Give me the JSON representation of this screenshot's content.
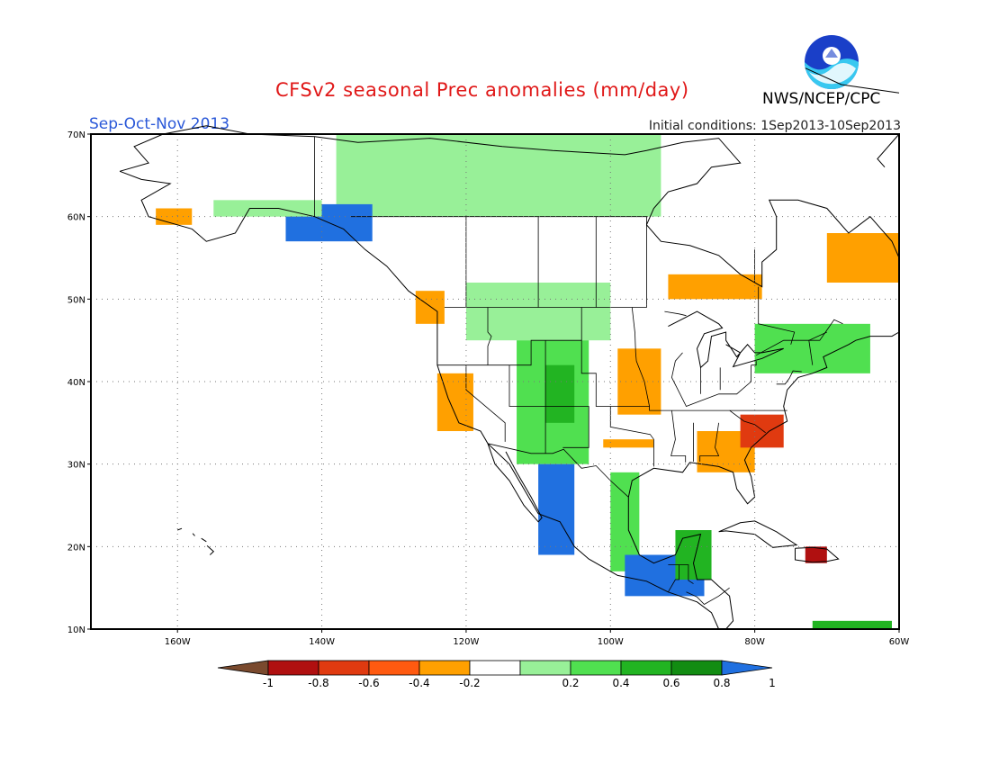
{
  "header": {
    "title": "CFSv2 seasonal Prec anomalies (mm/day)",
    "period": "Sep-Oct-Nov 2013",
    "init_conditions": "Initial conditions: 1Sep2013-10Sep2013",
    "org": "NWS/NCEP/CPC",
    "logo_text": "NOAA"
  },
  "map": {
    "lon_range": [
      -172,
      -60
    ],
    "lat_range": [
      10,
      70
    ],
    "lon_ticks": [
      {
        "value": -160,
        "label": "160W"
      },
      {
        "value": -140,
        "label": "140W"
      },
      {
        "value": -120,
        "label": "120W"
      },
      {
        "value": -100,
        "label": "100W"
      },
      {
        "value": -80,
        "label": "80W"
      },
      {
        "value": -60,
        "label": "60W"
      }
    ],
    "lat_ticks": [
      {
        "value": 10,
        "label": "10N"
      },
      {
        "value": 20,
        "label": "20N"
      },
      {
        "value": 30,
        "label": "30N"
      },
      {
        "value": 40,
        "label": "40N"
      },
      {
        "value": 50,
        "label": "50N"
      },
      {
        "value": 60,
        "label": "60N"
      },
      {
        "value": 70,
        "label": "70N"
      }
    ],
    "grid": true
  },
  "legend": {
    "labels": [
      "-1",
      "-0.8",
      "-0.6",
      "-0.4",
      "-0.2",
      "0.2",
      "0.4",
      "0.6",
      "0.8",
      "1"
    ],
    "bins": [
      {
        "range": "< -1",
        "color": "#7a4a2e"
      },
      {
        "range": "-1 to -0.8",
        "color": "#b01010"
      },
      {
        "range": "-0.8 to -0.6",
        "color": "#e03a10"
      },
      {
        "range": "-0.6 to -0.4",
        "color": "#ff5a10"
      },
      {
        "range": "-0.4 to -0.2",
        "color": "#ffa000"
      },
      {
        "range": "-0.2 to 0.2",
        "color": "#ffffff"
      },
      {
        "range": "0.2 to 0.4",
        "color": "#98f098"
      },
      {
        "range": "0.4 to 0.6",
        "color": "#50e050"
      },
      {
        "range": "0.6 to 0.8",
        "color": "#22b422"
      },
      {
        "range": "0.8 to 1",
        "color": "#128c12"
      },
      {
        "range": "> 1",
        "color": "#2070e0"
      }
    ]
  },
  "anomaly_regions": [
    {
      "name": "northern-canada-wet",
      "lon": [
        -138,
        -93
      ],
      "lat": [
        60,
        70
      ],
      "class": "0.2 to 0.4"
    },
    {
      "name": "alaska-gulf-wet",
      "lon": [
        -145,
        -133
      ],
      "lat": [
        57,
        61.5
      ],
      "class": "> 1"
    },
    {
      "name": "alaska-west-wet",
      "lon": [
        -155,
        -140
      ],
      "lat": [
        60,
        62
      ],
      "class": "0.2 to 0.4"
    },
    {
      "name": "western-alaska-dry",
      "lon": [
        -163,
        -158
      ],
      "lat": [
        59,
        61
      ],
      "class": "-0.4 to -0.2"
    },
    {
      "name": "pacific-northwest-dry",
      "lon": [
        -127,
        -123
      ],
      "lat": [
        47,
        51
      ],
      "class": "-0.4 to -0.2"
    },
    {
      "name": "northern-plains-wet",
      "lon": [
        -120,
        -100
      ],
      "lat": [
        45,
        52
      ],
      "class": "0.2 to 0.4"
    },
    {
      "name": "rockies-wet",
      "lon": [
        -113,
        -103
      ],
      "lat": [
        30,
        45
      ],
      "class": "0.4 to 0.6"
    },
    {
      "name": "rockies-core-wet",
      "lon": [
        -109,
        -105
      ],
      "lat": [
        35,
        42
      ],
      "class": "0.6 to 0.8"
    },
    {
      "name": "california-dry",
      "lon": [
        -124,
        -119
      ],
      "lat": [
        34,
        41
      ],
      "class": "-0.4 to -0.2"
    },
    {
      "name": "central-plains-dry",
      "lon": [
        -99,
        -93
      ],
      "lat": [
        36,
        44
      ],
      "class": "-0.4 to -0.2"
    },
    {
      "name": "texas-dry",
      "lon": [
        -101,
        -94
      ],
      "lat": [
        32,
        33
      ],
      "class": "-0.4 to -0.2"
    },
    {
      "name": "hudson-bay-dry",
      "lon": [
        -92,
        -79
      ],
      "lat": [
        50,
        53
      ],
      "class": "-0.4 to -0.2"
    },
    {
      "name": "labrador-dry",
      "lon": [
        -70,
        -60
      ],
      "lat": [
        52,
        58
      ],
      "class": "-0.4 to -0.2"
    },
    {
      "name": "southeast-dry",
      "lon": [
        -88,
        -80
      ],
      "lat": [
        29,
        34
      ],
      "class": "-0.4 to -0.2"
    },
    {
      "name": "carolinas-very-dry",
      "lon": [
        -82,
        -76
      ],
      "lat": [
        32,
        36
      ],
      "class": "-0.8 to -0.6"
    },
    {
      "name": "new-england-wet",
      "lon": [
        -80,
        -64
      ],
      "lat": [
        41,
        47
      ],
      "class": "0.4 to 0.6"
    },
    {
      "name": "west-mexico-wet",
      "lon": [
        -110,
        -105
      ],
      "lat": [
        19,
        30
      ],
      "class": "> 1"
    },
    {
      "name": "gulf-mexico-wet",
      "lon": [
        -100,
        -96
      ],
      "lat": [
        17,
        29
      ],
      "class": "0.4 to 0.6"
    },
    {
      "name": "central-america-wet",
      "lon": [
        -98,
        -87
      ],
      "lat": [
        14,
        19
      ],
      "class": "> 1"
    },
    {
      "name": "yucatan-wet",
      "lon": [
        -91,
        -86
      ],
      "lat": [
        16,
        22
      ],
      "class": "0.6 to 0.8"
    },
    {
      "name": "hispaniola-dry",
      "lon": [
        -73,
        -70
      ],
      "lat": [
        18,
        20
      ],
      "class": "-1 to -0.8"
    },
    {
      "name": "caribbean-wet",
      "lon": [
        -72,
        -61
      ],
      "lat": [
        10,
        11
      ],
      "class": "0.6 to 0.8"
    }
  ]
}
